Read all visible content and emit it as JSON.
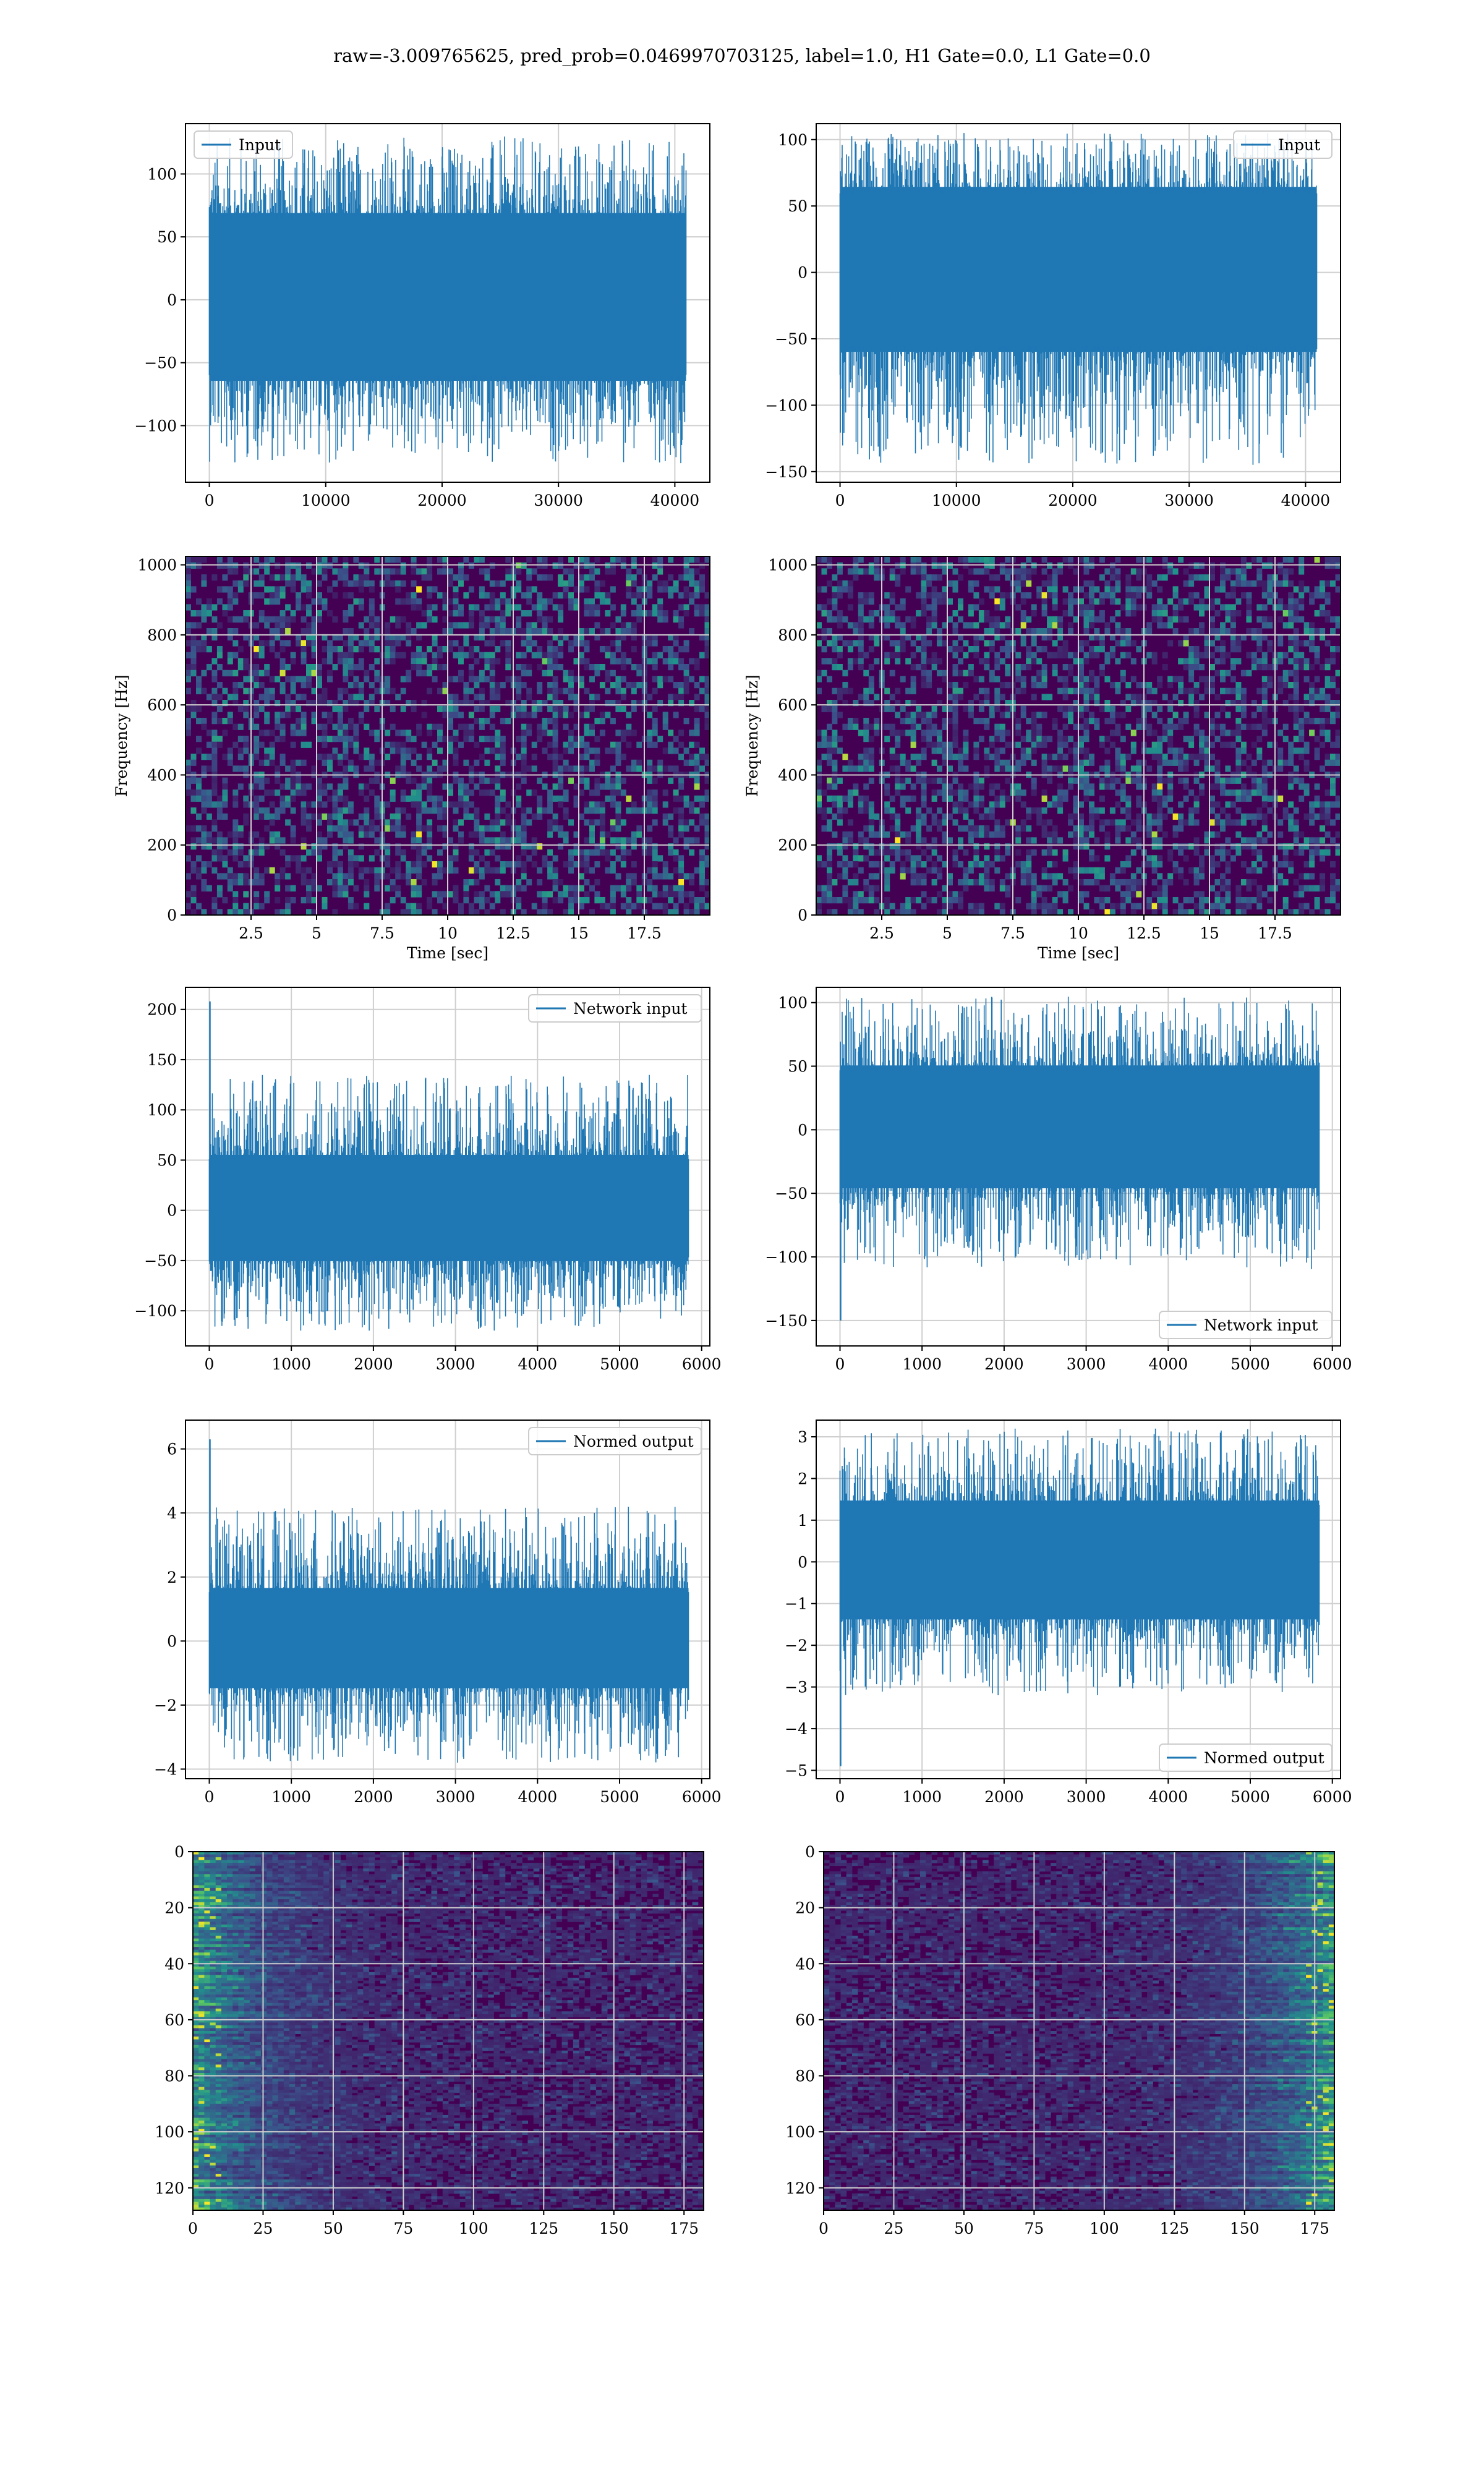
{
  "title": "raw=-3.009765625, pred_prob=0.0469970703125, label=1.0, H1 Gate=0.0, L1 Gate=0.0",
  "colors": {
    "line": "#1f77b4",
    "grid": "#cfcfcf",
    "axes": "#000000",
    "viridis_low": "#440154",
    "viridis_mid": "#21918c",
    "viridis_high": "#fde725"
  },
  "chart_data": [
    {
      "id": "input-h1",
      "type": "line",
      "legend": "Input",
      "legend_loc": "upper left",
      "xticks": [
        0,
        10000,
        20000,
        30000,
        40000
      ],
      "xlim": [
        -2048,
        43008
      ],
      "yticks": [
        -100,
        -50,
        0,
        50,
        100
      ],
      "ylim": [
        -145,
        140
      ],
      "x_range": [
        0,
        40960
      ],
      "band": [
        -70,
        75
      ],
      "spikes": [
        -130,
        130
      ],
      "grid": true
    },
    {
      "id": "input-l1",
      "type": "line",
      "legend": "Input",
      "legend_loc": "upper right",
      "xticks": [
        0,
        10000,
        20000,
        30000,
        40000
      ],
      "xlim": [
        -2048,
        43008
      ],
      "yticks": [
        -150,
        -100,
        -50,
        0,
        50,
        100
      ],
      "ylim": [
        -158,
        112
      ],
      "x_range": [
        0,
        40960
      ],
      "band": [
        -65,
        70
      ],
      "spikes": [
        -145,
        105
      ],
      "grid": true
    },
    {
      "id": "spectrogram-h1",
      "type": "heatmap",
      "colormap": "viridis",
      "xlabel": "Time [sec]",
      "ylabel": "Frequency [Hz]",
      "xticks": [
        2.5,
        5.0,
        7.5,
        10.0,
        12.5,
        15.0,
        17.5
      ],
      "xlim": [
        0,
        20
      ],
      "yticks": [
        0,
        200,
        400,
        600,
        800,
        1000
      ],
      "ylim": [
        0,
        1024
      ],
      "grid": true
    },
    {
      "id": "spectrogram-l1",
      "type": "heatmap",
      "colormap": "viridis",
      "xlabel": "Time [sec]",
      "ylabel": "Frequency [Hz]",
      "xticks": [
        2.5,
        5.0,
        7.5,
        10.0,
        12.5,
        15.0,
        17.5
      ],
      "xlim": [
        0,
        20
      ],
      "yticks": [
        0,
        200,
        400,
        600,
        800,
        1000
      ],
      "ylim": [
        0,
        1024
      ],
      "grid": true
    },
    {
      "id": "network-input-h1",
      "type": "line",
      "legend": "Network input",
      "legend_loc": "upper right",
      "xticks": [
        0,
        1000,
        2000,
        3000,
        4000,
        5000,
        6000
      ],
      "xlim": [
        -290,
        6100
      ],
      "yticks": [
        -100,
        -50,
        0,
        50,
        100,
        150,
        200
      ],
      "ylim": [
        -135,
        222
      ],
      "x_range": [
        0,
        5840
      ],
      "band": [
        -55,
        60
      ],
      "spikes": [
        -120,
        135
      ],
      "first_spike": 208,
      "grid": true
    },
    {
      "id": "network-input-l1",
      "type": "line",
      "legend": "Network input",
      "legend_loc": "lower right",
      "xticks": [
        0,
        1000,
        2000,
        3000,
        4000,
        5000,
        6000
      ],
      "xlim": [
        -290,
        6100
      ],
      "yticks": [
        -150,
        -100,
        -50,
        0,
        50,
        100
      ],
      "ylim": [
        -170,
        112
      ],
      "x_range": [
        0,
        5840
      ],
      "band": [
        -50,
        55
      ],
      "spikes": [
        -110,
        105
      ],
      "first_spike": -150,
      "grid": true
    },
    {
      "id": "normed-output-h1",
      "type": "line",
      "legend": "Normed output",
      "legend_loc": "upper right",
      "xticks": [
        0,
        1000,
        2000,
        3000,
        4000,
        5000,
        6000
      ],
      "xlim": [
        -290,
        6100
      ],
      "yticks": [
        -4,
        -2,
        0,
        2,
        4,
        6
      ],
      "ylim": [
        -4.3,
        6.9
      ],
      "x_range": [
        0,
        5840
      ],
      "band": [
        -1.6,
        1.8
      ],
      "spikes": [
        -3.8,
        4.2
      ],
      "first_spike": 6.3,
      "grid": true
    },
    {
      "id": "normed-output-l1",
      "type": "line",
      "legend": "Normed output",
      "legend_loc": "lower right",
      "xticks": [
        0,
        1000,
        2000,
        3000,
        4000,
        5000,
        6000
      ],
      "xlim": [
        -290,
        6100
      ],
      "yticks": [
        -5,
        -4,
        -3,
        -2,
        -1,
        0,
        1,
        2,
        3
      ],
      "ylim": [
        -5.2,
        3.4
      ],
      "x_range": [
        0,
        5840
      ],
      "band": [
        -1.5,
        1.6
      ],
      "spikes": [
        -3.2,
        3.2
      ],
      "first_spike": -4.9,
      "grid": true
    },
    {
      "id": "features-h1",
      "type": "heatmap",
      "colormap": "viridis",
      "xticks": [
        0,
        25,
        50,
        75,
        100,
        125,
        150,
        175
      ],
      "xlim": [
        0,
        182
      ],
      "yticks": [
        0,
        20,
        40,
        60,
        80,
        100,
        120
      ],
      "ylim": [
        128,
        0
      ],
      "bright_side": "left",
      "grid": true
    },
    {
      "id": "features-l1",
      "type": "heatmap",
      "colormap": "viridis",
      "xticks": [
        0,
        25,
        50,
        75,
        100,
        125,
        150,
        175
      ],
      "xlim": [
        0,
        182
      ],
      "yticks": [
        0,
        20,
        40,
        60,
        80,
        100,
        120
      ],
      "ylim": [
        128,
        0
      ],
      "bright_side": "right",
      "grid": true
    }
  ]
}
